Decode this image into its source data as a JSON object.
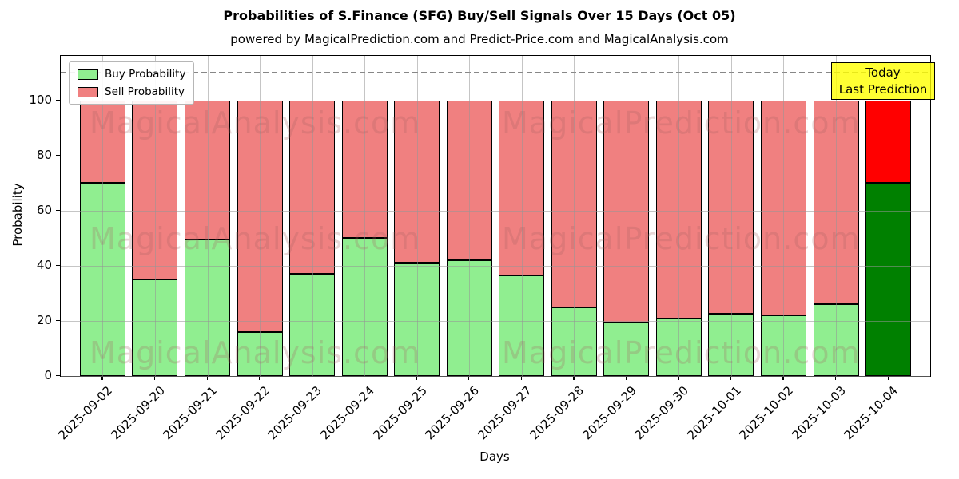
{
  "header": {
    "title": "Probabilities of S.Finance (SFG) Buy/Sell Signals Over 15 Days (Oct 05)",
    "subtitle": "powered by MagicalPrediction.com and Predict-Price.com and MagicalAnalysis.com"
  },
  "legend": {
    "buy_label": "Buy Probability",
    "sell_label": "Sell Probability"
  },
  "today_badge": {
    "line1": "Today",
    "line2": "Last Prediction"
  },
  "watermarks": {
    "left_text": "MagicalAnalysis.com",
    "right_text": "MagicalPrediction.com"
  },
  "colors": {
    "buy": "#90EE90",
    "sell": "#F08080",
    "buy_today": "#008000",
    "sell_today": "#FF0000",
    "badge_yellow": "#FFFF00"
  },
  "chart_data": {
    "type": "bar",
    "stacked": true,
    "title": "Probabilities of S.Finance (SFG) Buy/Sell Signals Over 15 Days (Oct 05)",
    "xlabel": "Days",
    "ylabel": "Probability",
    "categories": [
      "2025-09-02",
      "2025-09-20",
      "2025-09-21",
      "2025-09-22",
      "2025-09-23",
      "2025-09-24",
      "2025-09-25",
      "2025-09-26",
      "2025-09-27",
      "2025-09-28",
      "2025-09-29",
      "2025-09-30",
      "2025-10-01",
      "2025-10-02",
      "2025-10-03",
      "2025-10-04"
    ],
    "series": [
      {
        "name": "Buy Probability",
        "values": [
          70,
          35,
          49.5,
          16,
          37,
          50,
          41,
          42,
          36.5,
          25,
          19.5,
          21,
          22.5,
          22,
          26,
          70
        ]
      },
      {
        "name": "Sell Probability",
        "values": [
          30,
          65,
          50.5,
          84,
          63,
          50,
          59,
          58,
          63.5,
          75,
          80.5,
          79,
          77.5,
          78,
          74,
          30
        ]
      }
    ],
    "highlighted_category": "2025-10-04",
    "yticks": [
      0,
      20,
      40,
      60,
      80,
      100
    ],
    "ylim": [
      0,
      116.2
    ],
    "dashed_line_y": 110.5,
    "grid": true,
    "legend_position": "upper left"
  }
}
